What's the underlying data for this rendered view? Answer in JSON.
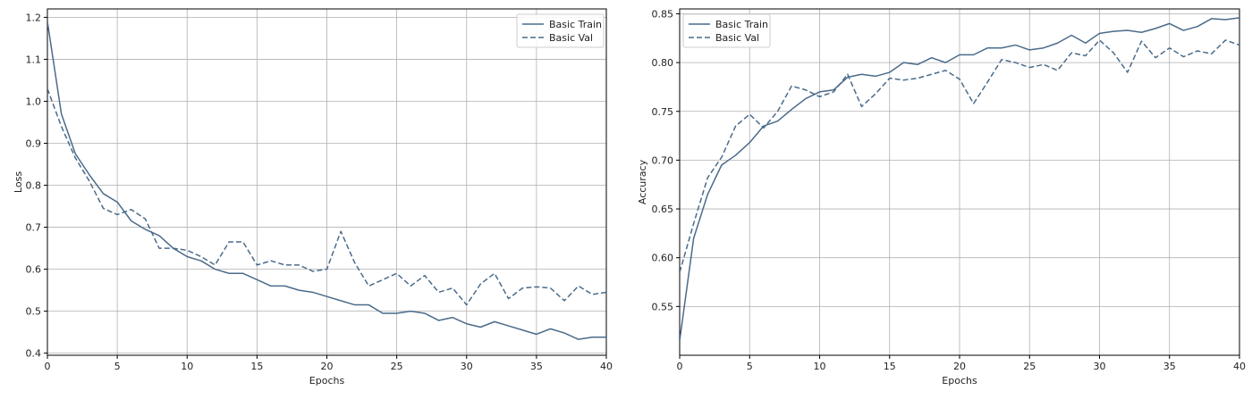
{
  "colors": {
    "series": "#4a6b8a",
    "grid": "#b0b0b0",
    "axis": "#000000"
  },
  "chart_data": [
    {
      "type": "line",
      "title": "",
      "xlabel": "Epochs",
      "ylabel": "Loss",
      "xlim": [
        0,
        40
      ],
      "ylim": [
        0.395,
        1.22
      ],
      "xticks": [
        0,
        5,
        10,
        15,
        20,
        25,
        30,
        35,
        40
      ],
      "yticks": [
        0.4,
        0.5,
        0.6,
        0.7,
        0.8,
        0.9,
        1.0,
        1.1,
        1.2
      ],
      "ytick_labels": [
        "0.4",
        "0.5",
        "0.6",
        "0.7",
        "0.8",
        "0.9",
        "1.0",
        "1.1",
        "1.2"
      ],
      "grid": true,
      "legend_position": "top-right",
      "x": [
        0,
        1,
        2,
        3,
        4,
        5,
        6,
        7,
        8,
        9,
        10,
        11,
        12,
        13,
        14,
        15,
        16,
        17,
        18,
        19,
        20,
        21,
        22,
        23,
        24,
        25,
        26,
        27,
        28,
        29,
        30,
        31,
        32,
        33,
        34,
        35,
        36,
        37,
        38,
        39,
        40
      ],
      "series": [
        {
          "name": "Basic Train",
          "style": "solid",
          "values": [
            1.19,
            0.97,
            0.875,
            0.825,
            0.78,
            0.76,
            0.715,
            0.695,
            0.68,
            0.65,
            0.63,
            0.62,
            0.6,
            0.59,
            0.59,
            0.575,
            0.56,
            0.56,
            0.55,
            0.545,
            0.535,
            0.525,
            0.515,
            0.515,
            0.495,
            0.495,
            0.5,
            0.495,
            0.478,
            0.485,
            0.47,
            0.462,
            0.475,
            0.465,
            0.455,
            0.445,
            0.458,
            0.448,
            0.433,
            0.438,
            0.438
          ]
        },
        {
          "name": "Basic Val",
          "style": "dashed",
          "values": [
            1.03,
            0.94,
            0.865,
            0.81,
            0.745,
            0.73,
            0.742,
            0.72,
            0.65,
            0.65,
            0.645,
            0.63,
            0.61,
            0.665,
            0.665,
            0.61,
            0.62,
            0.61,
            0.61,
            0.595,
            0.6,
            0.69,
            0.615,
            0.56,
            0.575,
            0.59,
            0.56,
            0.585,
            0.545,
            0.555,
            0.515,
            0.565,
            0.59,
            0.53,
            0.555,
            0.558,
            0.555,
            0.525,
            0.56,
            0.54,
            0.545
          ]
        }
      ]
    },
    {
      "type": "line",
      "title": "",
      "xlabel": "Epochs",
      "ylabel": "Accuracy",
      "xlim": [
        0,
        40
      ],
      "ylim": [
        0.5,
        0.855
      ],
      "xticks": [
        0,
        5,
        10,
        15,
        20,
        25,
        30,
        35,
        40
      ],
      "yticks": [
        0.55,
        0.6,
        0.65,
        0.7,
        0.75,
        0.8,
        0.85
      ],
      "ytick_labels": [
        "0.55",
        "0.60",
        "0.65",
        "0.70",
        "0.75",
        "0.80",
        "0.85"
      ],
      "grid": true,
      "legend_position": "top-left",
      "x": [
        0,
        1,
        2,
        3,
        4,
        5,
        6,
        7,
        8,
        9,
        10,
        11,
        12,
        13,
        14,
        15,
        16,
        17,
        18,
        19,
        20,
        21,
        22,
        23,
        24,
        25,
        26,
        27,
        28,
        29,
        30,
        31,
        32,
        33,
        34,
        35,
        36,
        37,
        38,
        39,
        40
      ],
      "series": [
        {
          "name": "Basic Train",
          "style": "solid",
          "values": [
            0.515,
            0.62,
            0.665,
            0.695,
            0.705,
            0.718,
            0.735,
            0.74,
            0.752,
            0.763,
            0.77,
            0.772,
            0.785,
            0.788,
            0.786,
            0.79,
            0.8,
            0.798,
            0.805,
            0.8,
            0.808,
            0.808,
            0.815,
            0.815,
            0.818,
            0.813,
            0.815,
            0.82,
            0.828,
            0.82,
            0.83,
            0.832,
            0.833,
            0.831,
            0.835,
            0.84,
            0.833,
            0.837,
            0.845,
            0.844,
            0.846
          ]
        },
        {
          "name": "Basic Val",
          "style": "dashed",
          "values": [
            0.585,
            0.635,
            0.682,
            0.703,
            0.735,
            0.747,
            0.733,
            0.75,
            0.776,
            0.772,
            0.765,
            0.77,
            0.788,
            0.755,
            0.768,
            0.784,
            0.782,
            0.784,
            0.788,
            0.792,
            0.783,
            0.758,
            0.78,
            0.803,
            0.8,
            0.795,
            0.798,
            0.792,
            0.81,
            0.807,
            0.823,
            0.81,
            0.79,
            0.822,
            0.805,
            0.815,
            0.806,
            0.812,
            0.809,
            0.823,
            0.818
          ]
        }
      ]
    }
  ]
}
